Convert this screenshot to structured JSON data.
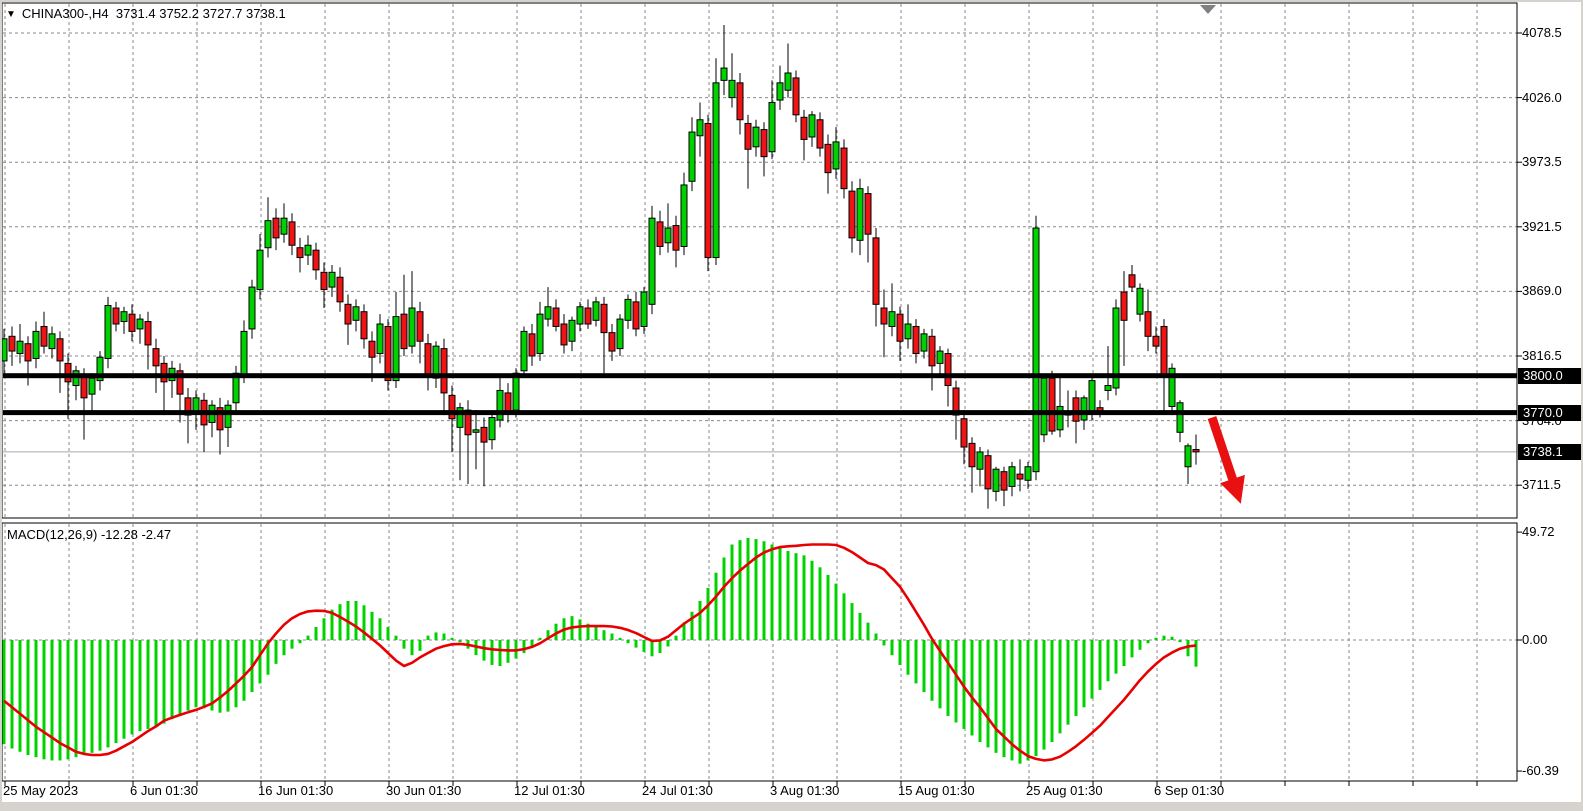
{
  "window": {
    "header": {
      "dropdown_icon": "▼",
      "symbol": "CHINA300-,H4",
      "open": "3731.4",
      "high": "3752.2",
      "low": "3727.7",
      "close": "3738.1"
    },
    "indicator_label": {
      "name": "MACD(12,26,9)",
      "macd_value": "-12.28",
      "signal_value": "-2.47"
    }
  },
  "colors": {
    "bull": "#00d200",
    "bear": "#ec1414",
    "wick": "#000000",
    "candle_border": "#000000",
    "hline": "#000000",
    "histogram": "#00d200",
    "signal_line": "#e80000",
    "grid": "#8a8a8a",
    "badge_bg": "#000000",
    "badge_text": "#ffffff",
    "arrow": "#e81010",
    "end_marker": "#808080",
    "current_price_line": "#aaaaaa",
    "panel_border": "#000000"
  },
  "price_axis": {
    "top_value": 4078.5,
    "step": 52.5,
    "tick_labels": [
      "4078.5",
      "4026.0",
      "3973.5",
      "3921.5",
      "3869.0",
      "3816.5",
      "3764.0",
      "3711.5"
    ],
    "badges": [
      {
        "text": "3800.0",
        "price": 3800.0
      },
      {
        "text": "3770.0",
        "price": 3770.0
      },
      {
        "text": "3738.1",
        "price": 3738.1
      }
    ]
  },
  "macd_axis": {
    "ticks": [
      {
        "text": "49.72",
        "value": 49.72
      },
      {
        "text": "0.00",
        "value": 0
      },
      {
        "text": "-60.39",
        "value": -60.39
      }
    ]
  },
  "time_axis": {
    "labels": [
      {
        "bar": 0,
        "text": "25 May 2023"
      },
      {
        "bar": 16,
        "text": "6 Jun 01:30"
      },
      {
        "bar": 32,
        "text": "16 Jun 01:30"
      },
      {
        "bar": 48,
        "text": "30 Jun 01:30"
      },
      {
        "bar": 64,
        "text": "12 Jul 01:30"
      },
      {
        "bar": 80,
        "text": "24 Jul 01:30"
      },
      {
        "bar": 96,
        "text": "3 Aug 01:30"
      },
      {
        "bar": 112,
        "text": "15 Aug 01:30"
      },
      {
        "bar": 128,
        "text": "25 Aug 01:30"
      },
      {
        "bar": 144,
        "text": "6 Sep 01:30"
      }
    ]
  },
  "annotations": {
    "trend_arrow": {
      "from_bar": 151,
      "from_price": 3766,
      "to_bar": 154.6,
      "to_price": 3696
    },
    "end_marker_bar": 150.5
  },
  "chart_data": [
    {
      "type": "candlestick",
      "title": "CHINA300-,H4",
      "ohlc_readout": {
        "open": 3731.4,
        "high": 3752.2,
        "low": 3727.7,
        "close": 3738.1
      },
      "y_ticks": [
        4078.5,
        4026.0,
        3973.5,
        3921.5,
        3869.0,
        3816.5,
        3764.0,
        3711.5
      ],
      "hlines": [
        3800.0,
        3770.0
      ],
      "current_price": 3738.1,
      "candles": [
        [
          3812,
          3838,
          3800,
          3830
        ],
        [
          3832,
          3840,
          3808,
          3820
        ],
        [
          3818,
          3842,
          3810,
          3828
        ],
        [
          3826,
          3832,
          3792,
          3812
        ],
        [
          3814,
          3844,
          3806,
          3836
        ],
        [
          3840,
          3852,
          3818,
          3824
        ],
        [
          3822,
          3840,
          3814,
          3834
        ],
        [
          3830,
          3836,
          3786,
          3812
        ],
        [
          3810,
          3818,
          3765,
          3795
        ],
        [
          3792,
          3808,
          3780,
          3804
        ],
        [
          3800,
          3806,
          3748,
          3782
        ],
        [
          3785,
          3802,
          3770,
          3798
        ],
        [
          3796,
          3820,
          3788,
          3815
        ],
        [
          3814,
          3864,
          3806,
          3857
        ],
        [
          3855,
          3860,
          3836,
          3842
        ],
        [
          3844,
          3856,
          3834,
          3852
        ],
        [
          3850,
          3858,
          3828,
          3836
        ],
        [
          3838,
          3850,
          3826,
          3846
        ],
        [
          3844,
          3852,
          3805,
          3825
        ],
        [
          3822,
          3830,
          3786,
          3808
        ],
        [
          3810,
          3816,
          3768,
          3795
        ],
        [
          3796,
          3812,
          3782,
          3806
        ],
        [
          3804,
          3810,
          3762,
          3785
        ],
        [
          3782,
          3790,
          3745,
          3768
        ],
        [
          3770,
          3788,
          3756,
          3782
        ],
        [
          3780,
          3786,
          3738,
          3760
        ],
        [
          3762,
          3780,
          3750,
          3776
        ],
        [
          3774,
          3782,
          3736,
          3756
        ],
        [
          3758,
          3780,
          3742,
          3776
        ],
        [
          3778,
          3808,
          3770,
          3802
        ],
        [
          3800,
          3845,
          3794,
          3836
        ],
        [
          3838,
          3878,
          3830,
          3872
        ],
        [
          3870,
          3915,
          3862,
          3902
        ],
        [
          3904,
          3945,
          3896,
          3926
        ],
        [
          3928,
          3936,
          3902,
          3912
        ],
        [
          3915,
          3940,
          3908,
          3928
        ],
        [
          3925,
          3932,
          3898,
          3906
        ],
        [
          3904,
          3912,
          3884,
          3896
        ],
        [
          3898,
          3914,
          3890,
          3906
        ],
        [
          3902,
          3908,
          3878,
          3886
        ],
        [
          3884,
          3892,
          3855,
          3870
        ],
        [
          3872,
          3890,
          3864,
          3884
        ],
        [
          3880,
          3888,
          3852,
          3860
        ],
        [
          3858,
          3866,
          3825,
          3842
        ],
        [
          3845,
          3862,
          3836,
          3856
        ],
        [
          3852,
          3858,
          3822,
          3830
        ],
        [
          3828,
          3836,
          3795,
          3815
        ],
        [
          3818,
          3850,
          3810,
          3842
        ],
        [
          3840,
          3846,
          3788,
          3796
        ],
        [
          3796,
          3868,
          3790,
          3848
        ],
        [
          3850,
          3882,
          3816,
          3822
        ],
        [
          3824,
          3885,
          3818,
          3855
        ],
        [
          3852,
          3860,
          3810,
          3828
        ],
        [
          3826,
          3834,
          3788,
          3800
        ],
        [
          3798,
          3828,
          3790,
          3824
        ],
        [
          3822,
          3830,
          3768,
          3786
        ],
        [
          3784,
          3792,
          3738,
          3765
        ],
        [
          3758,
          3778,
          3715,
          3774
        ],
        [
          3772,
          3780,
          3712,
          3752
        ],
        [
          3754,
          3772,
          3724,
          3756
        ],
        [
          3758,
          3766,
          3710,
          3746
        ],
        [
          3748,
          3770,
          3740,
          3766
        ],
        [
          3764,
          3798,
          3758,
          3788
        ],
        [
          3786,
          3794,
          3762,
          3770
        ],
        [
          3772,
          3806,
          3766,
          3802
        ],
        [
          3804,
          3840,
          3798,
          3836
        ],
        [
          3834,
          3842,
          3808,
          3816
        ],
        [
          3818,
          3860,
          3812,
          3850
        ],
        [
          3846,
          3872,
          3840,
          3856
        ],
        [
          3855,
          3862,
          3836,
          3840
        ],
        [
          3842,
          3850,
          3818,
          3825
        ],
        [
          3828,
          3848,
          3820,
          3845
        ],
        [
          3842,
          3860,
          3836,
          3856
        ],
        [
          3855,
          3862,
          3838,
          3842
        ],
        [
          3845,
          3864,
          3840,
          3860
        ],
        [
          3858,
          3864,
          3802,
          3835
        ],
        [
          3835,
          3842,
          3812,
          3820
        ],
        [
          3822,
          3850,
          3816,
          3846
        ],
        [
          3845,
          3866,
          3838,
          3862
        ],
        [
          3860,
          3868,
          3832,
          3838
        ],
        [
          3840,
          3872,
          3834,
          3868
        ],
        [
          3858,
          3938,
          3850,
          3928
        ],
        [
          3925,
          3934,
          3898,
          3905
        ],
        [
          3908,
          3940,
          3900,
          3920
        ],
        [
          3922,
          3930,
          3888,
          3902
        ],
        [
          3905,
          3965,
          3898,
          3955
        ],
        [
          3958,
          4010,
          3950,
          3998
        ],
        [
          3995,
          4022,
          3978,
          4008
        ],
        [
          4005,
          4012,
          3885,
          3896
        ],
        [
          3896,
          4058,
          3890,
          4038
        ],
        [
          4040,
          4085,
          4028,
          4050
        ],
        [
          4026,
          4062,
          4018,
          4040
        ],
        [
          4038,
          4046,
          3996,
          4008
        ],
        [
          4005,
          4012,
          3952,
          3984
        ],
        [
          3986,
          4008,
          3978,
          4002
        ],
        [
          4000,
          4006,
          3962,
          3978
        ],
        [
          3982,
          4040,
          3976,
          4022
        ],
        [
          4024,
          4052,
          4016,
          4038
        ],
        [
          4032,
          4070,
          4026,
          4046
        ],
        [
          4042,
          4048,
          4006,
          4012
        ],
        [
          4010,
          4016,
          3975,
          3992
        ],
        [
          3994,
          4015,
          3986,
          4012
        ],
        [
          4008,
          4014,
          3978,
          3985
        ],
        [
          3988,
          3996,
          3948,
          3965
        ],
        [
          3968,
          4002,
          3960,
          3990
        ],
        [
          3985,
          3992,
          3944,
          3952
        ],
        [
          3950,
          3958,
          3900,
          3912
        ],
        [
          3910,
          3960,
          3898,
          3952
        ],
        [
          3948,
          3954,
          3892,
          3915
        ],
        [
          3912,
          3920,
          3840,
          3858
        ],
        [
          3855,
          3870,
          3815,
          3842
        ],
        [
          3840,
          3875,
          3832,
          3852
        ],
        [
          3850,
          3856,
          3812,
          3828
        ],
        [
          3830,
          3858,
          3822,
          3842
        ],
        [
          3840,
          3846,
          3810,
          3818
        ],
        [
          3820,
          3838,
          3814,
          3834
        ],
        [
          3832,
          3838,
          3788,
          3808
        ],
        [
          3810,
          3824,
          3800,
          3820
        ],
        [
          3818,
          3822,
          3775,
          3792
        ],
        [
          3790,
          3796,
          3748,
          3768
        ],
        [
          3765,
          3772,
          3728,
          3742
        ],
        [
          3745,
          3750,
          3705,
          3726
        ],
        [
          3724,
          3742,
          3710,
          3738
        ],
        [
          3735,
          3740,
          3692,
          3708
        ],
        [
          3706,
          3726,
          3698,
          3724
        ],
        [
          3722,
          3726,
          3694,
          3707
        ],
        [
          3710,
          3730,
          3702,
          3726
        ],
        [
          3720,
          3732,
          3706,
          3716
        ],
        [
          3715,
          3730,
          3708,
          3726
        ],
        [
          3722,
          3930,
          3715,
          3920
        ],
        [
          3752,
          3800,
          3746,
          3798
        ],
        [
          3798,
          3804,
          3752,
          3755
        ],
        [
          3756,
          3800,
          3750,
          3775
        ],
        [
          3770,
          3788,
          3758,
          3768
        ],
        [
          3782,
          3788,
          3745,
          3763
        ],
        [
          3764,
          3784,
          3756,
          3782
        ],
        [
          3770,
          3798,
          3764,
          3796
        ],
        [
          3774,
          3780,
          3766,
          3770
        ],
        [
          3788,
          3824,
          3780,
          3792
        ],
        [
          3790,
          3862,
          3784,
          3855
        ],
        [
          3868,
          3885,
          3808,
          3845
        ],
        [
          3882,
          3890,
          3868,
          3872
        ],
        [
          3850,
          3875,
          3844,
          3871
        ],
        [
          3852,
          3870,
          3820,
          3832
        ],
        [
          3832,
          3840,
          3818,
          3824
        ],
        [
          3840,
          3846,
          3770,
          3800
        ],
        [
          3775,
          3810,
          3768,
          3806
        ],
        [
          3754,
          3780,
          3746,
          3778
        ],
        [
          3726,
          3745,
          3712,
          3743
        ],
        [
          3740,
          3752.2,
          3727.7,
          3738.1
        ]
      ]
    },
    {
      "type": "bar",
      "subtype": "macd",
      "title": "MACD(12,26,9)",
      "macd_current": -12.28,
      "signal_current": -2.47,
      "y_ticks": [
        49.72,
        0,
        -60.39
      ],
      "histogram": [
        -48,
        -50,
        -51.5,
        -53,
        -54,
        -55,
        -55.5,
        -55.5,
        -55,
        -54,
        -53,
        -52,
        -51,
        -49.5,
        -47.5,
        -45.5,
        -43.5,
        -42,
        -41,
        -40,
        -38.5,
        -36.5,
        -34.5,
        -32.5,
        -31,
        -31.5,
        -32.5,
        -33.5,
        -33,
        -31,
        -28,
        -24,
        -20,
        -16,
        -11,
        -7,
        -4,
        -1.5,
        2,
        6,
        10,
        14,
        16.5,
        18,
        18,
        16,
        13,
        10,
        6,
        2,
        -4,
        -7,
        -5,
        2,
        3.5,
        3,
        1,
        -1,
        -4,
        -7,
        -9.5,
        -11.5,
        -12,
        -10.5,
        -8.5,
        -6,
        -3,
        1,
        4.5,
        7.5,
        10,
        11,
        9.5,
        7.5,
        6,
        4.5,
        3,
        1,
        -1.5,
        -3.5,
        -5.5,
        -7.5,
        -6,
        -3,
        2,
        8,
        13,
        18,
        24,
        31,
        38,
        44,
        46,
        47,
        46.5,
        45.5,
        44,
        42.5,
        41,
        40,
        39,
        36.5,
        33.5,
        30,
        26,
        21.5,
        17,
        12.5,
        8,
        3,
        -2.5,
        -7,
        -11.5,
        -16,
        -20,
        -24,
        -28,
        -31.5,
        -35,
        -38,
        -41,
        -44,
        -47,
        -49.5,
        -52,
        -54,
        -55.5,
        -57,
        -55.5,
        -53.5,
        -50.5,
        -47,
        -43,
        -39,
        -35,
        -31,
        -27,
        -23,
        -19,
        -15.5,
        -12,
        -8,
        -4.5,
        -1.5,
        1,
        2,
        1.5,
        -1,
        -7.5,
        -12.28
      ],
      "signal": [
        -28,
        -31,
        -34,
        -37,
        -40,
        -42.5,
        -45,
        -47.5,
        -49.5,
        -51.5,
        -52.5,
        -53,
        -53,
        -52.5,
        -51,
        -49,
        -47,
        -44.5,
        -42,
        -39.8,
        -37.2,
        -35.8,
        -34.5,
        -33.3,
        -32.2,
        -30.8,
        -29.2,
        -26.5,
        -23.5,
        -20,
        -16.5,
        -12.5,
        -7,
        -1.5,
        3,
        7,
        10,
        12,
        13.2,
        13.5,
        13.4,
        12.5,
        10.6,
        8.5,
        6.2,
        3.5,
        0.5,
        -2.5,
        -6,
        -9.5,
        -12,
        -10.5,
        -8,
        -6,
        -4,
        -2.8,
        -2,
        -1.8,
        -2.2,
        -3,
        -3.8,
        -4.3,
        -4.6,
        -4.8,
        -4.8,
        -4.2,
        -3.2,
        -1.5,
        0.8,
        3,
        4.8,
        5.8,
        6.2,
        6.4,
        6.4,
        6.4,
        6.2,
        5.6,
        4.6,
        3.2,
        1.4,
        -0.4,
        -0.2,
        1.5,
        4.5,
        7.5,
        10,
        12.5,
        16,
        20,
        24.5,
        28.5,
        32,
        35,
        38,
        40.3,
        41.8,
        42.8,
        43.2,
        43.4,
        43.8,
        44,
        44,
        44,
        43.8,
        42.5,
        40.5,
        38,
        35.5,
        34.5,
        32.5,
        28.5,
        24.5,
        19,
        13,
        7,
        0.5,
        -5,
        -10.5,
        -16,
        -21.5,
        -26.5,
        -31,
        -36,
        -41,
        -44.5,
        -48,
        -51,
        -53.5,
        -54.8,
        -55.5,
        -55,
        -53.8,
        -51.5,
        -49,
        -46,
        -42.8,
        -39.5,
        -35.5,
        -31.5,
        -27.5,
        -23,
        -18.5,
        -14.5,
        -11,
        -8,
        -5.8,
        -4,
        -3,
        -2.47
      ]
    }
  ]
}
